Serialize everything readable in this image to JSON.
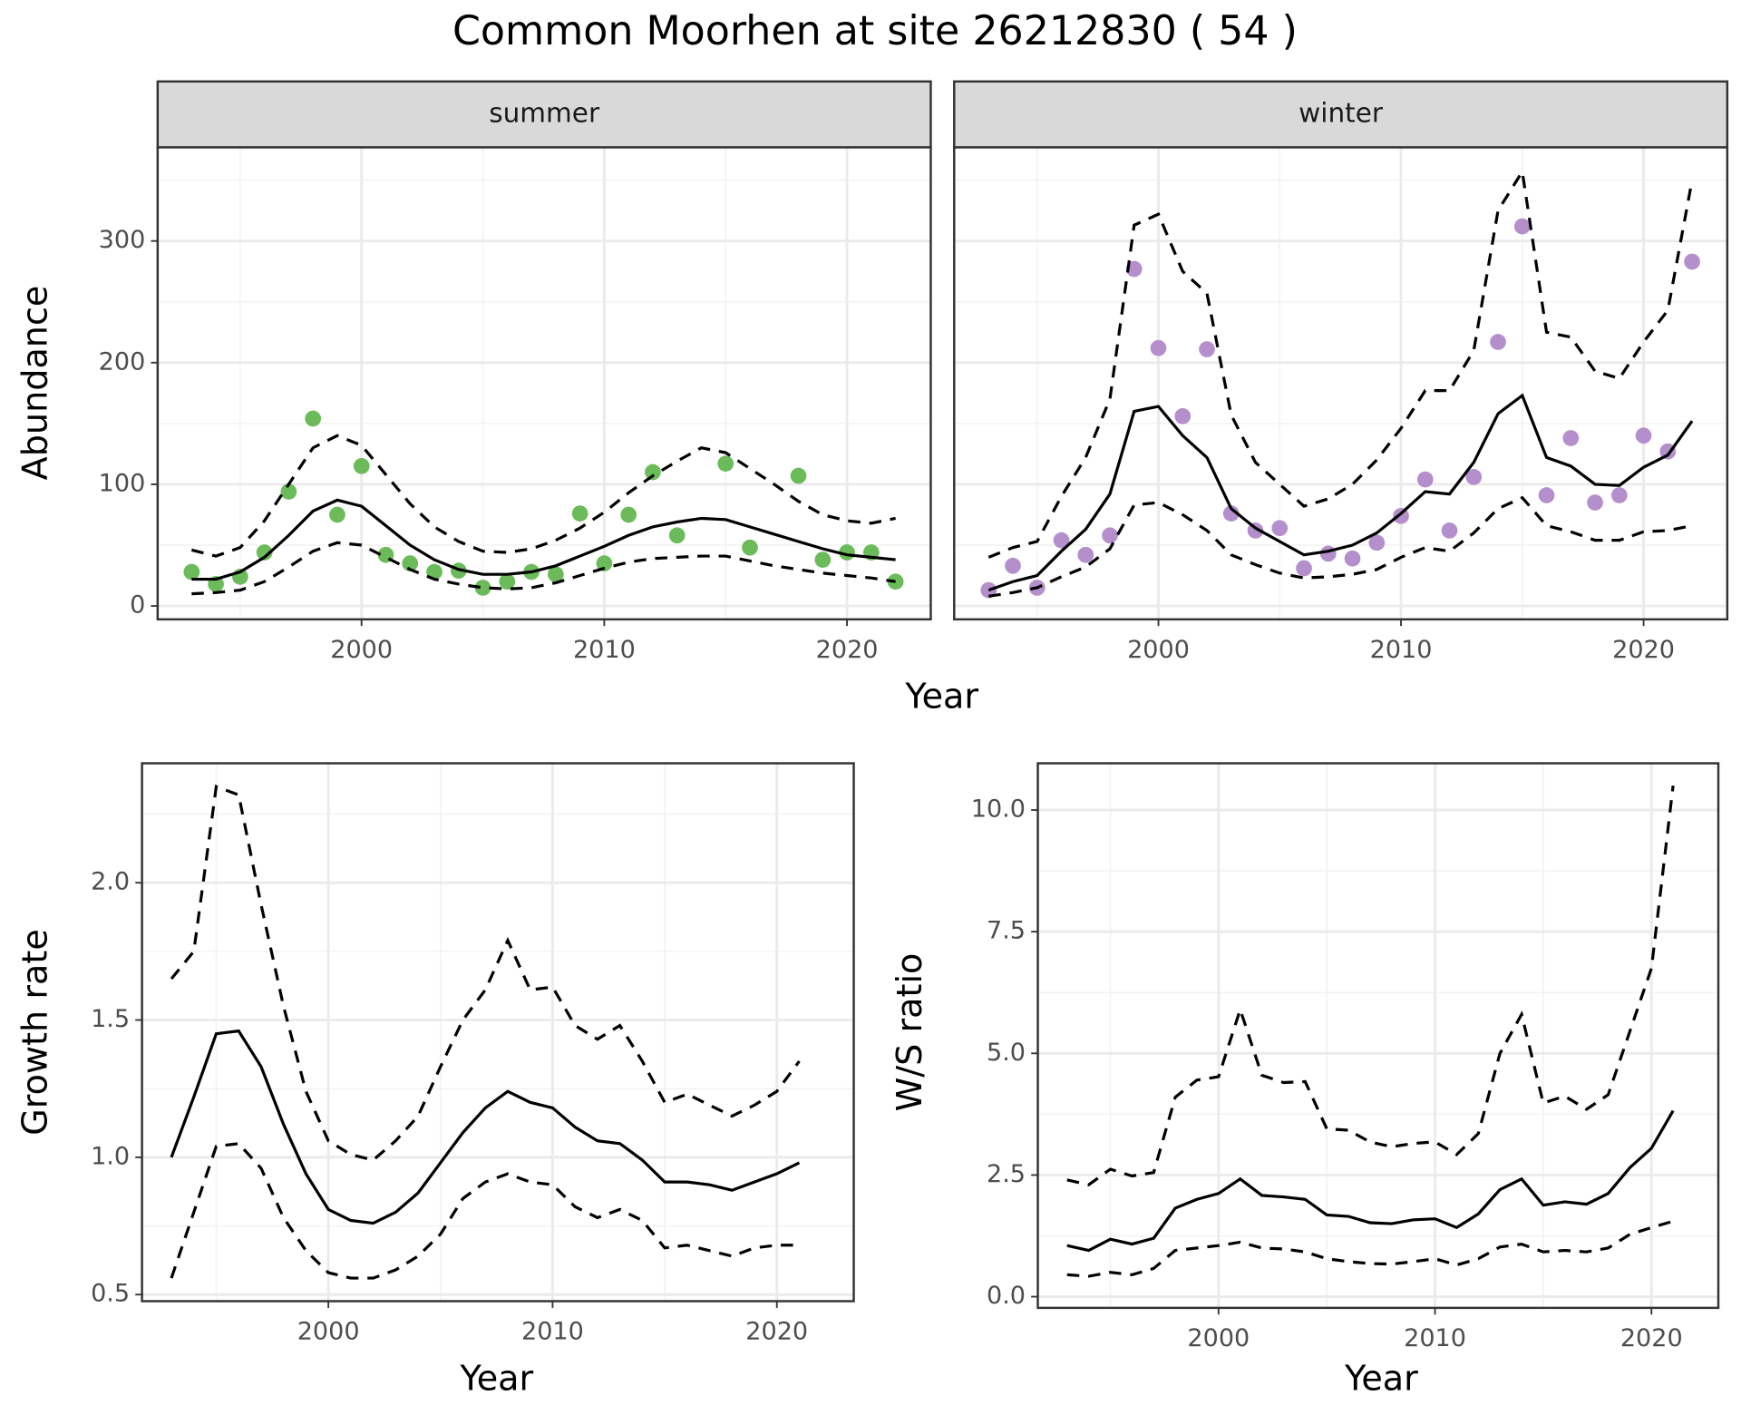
{
  "title": "Common Moorhen at site 26212830 ( 54 )",
  "chart_data": [
    {
      "type": "scatter-fit",
      "strip": "summer",
      "ylabel": "Abundance",
      "xlabel": "Year",
      "x": [
        1993,
        1994,
        1995,
        1996,
        1997,
        1998,
        1999,
        2000,
        2001,
        2002,
        2003,
        2004,
        2005,
        2006,
        2007,
        2008,
        2009,
        2010,
        2011,
        2012,
        2013,
        2014,
        2015,
        2016,
        2017,
        2018,
        2019,
        2020,
        2021,
        2022
      ],
      "xlim": [
        1991.6,
        2023.45
      ],
      "xticks": [
        2000,
        2010,
        2020
      ],
      "xminor": [
        1995,
        2005,
        2015
      ],
      "ylim": [
        -11,
        377
      ],
      "yticks": [
        0,
        100,
        200,
        300
      ],
      "yminor": [
        50,
        150,
        250,
        350
      ],
      "ytick_labels": true,
      "grid": true,
      "series": [
        {
          "role": "points",
          "color": "#6cbb5a",
          "values": [
            28,
            18,
            24,
            44,
            94,
            154,
            75,
            115,
            42,
            35,
            28,
            29,
            15,
            20,
            28,
            26,
            76,
            35,
            75,
            110,
            58,
            null,
            117,
            48,
            null,
            107,
            38,
            44,
            44,
            20
          ]
        },
        {
          "role": "fit",
          "line": "solid",
          "color": "#000000",
          "values": [
            22,
            22,
            28,
            40,
            58,
            78,
            87,
            82,
            66,
            50,
            38,
            30,
            26,
            26,
            28,
            33,
            41,
            49,
            58,
            65,
            69,
            72,
            71,
            65,
            59,
            53,
            47,
            42,
            40,
            38
          ]
        },
        {
          "role": "upper",
          "line": "dashed",
          "color": "#000000",
          "values": [
            46,
            41,
            48,
            70,
            100,
            130,
            140,
            132,
            108,
            84,
            65,
            53,
            45,
            44,
            47,
            54,
            64,
            77,
            93,
            107,
            119,
            130,
            126,
            113,
            100,
            86,
            75,
            70,
            68,
            72
          ]
        },
        {
          "role": "lower",
          "line": "dashed",
          "color": "#000000",
          "values": [
            10,
            11,
            13,
            20,
            32,
            45,
            52,
            50,
            40,
            30,
            22,
            18,
            15,
            14,
            15,
            19,
            25,
            31,
            36,
            39,
            40,
            41,
            41,
            37,
            33,
            30,
            27,
            25,
            23,
            20
          ]
        }
      ]
    },
    {
      "type": "scatter-fit",
      "strip": "winter",
      "x": [
        1993,
        1994,
        1995,
        1996,
        1997,
        1998,
        1999,
        2000,
        2001,
        2002,
        2003,
        2004,
        2005,
        2006,
        2007,
        2008,
        2009,
        2010,
        2011,
        2012,
        2013,
        2014,
        2015,
        2016,
        2017,
        2018,
        2019,
        2020,
        2021,
        2022
      ],
      "xlim": [
        1991.58,
        2023.45
      ],
      "xticks": [
        2000,
        2010,
        2020
      ],
      "xminor": [
        1995,
        2005,
        2015
      ],
      "ylim": [
        -11,
        377
      ],
      "yticks": [
        0,
        100,
        200,
        300
      ],
      "yminor": [
        50,
        150,
        250,
        350
      ],
      "ytick_labels": false,
      "grid": true,
      "series": [
        {
          "role": "points",
          "color": "#b48fcc",
          "values": [
            13,
            33,
            15,
            54,
            42,
            58,
            277,
            212,
            156,
            211,
            76,
            62,
            64,
            31,
            43,
            39,
            52,
            74,
            104,
            62,
            106,
            217,
            312,
            91,
            138,
            85,
            91,
            140,
            127,
            283
          ]
        },
        {
          "role": "fit",
          "line": "solid",
          "color": "#000000",
          "values": [
            13,
            20,
            25,
            45,
            63,
            92,
            160,
            164,
            140,
            122,
            80,
            64,
            53,
            42,
            45,
            50,
            60,
            76,
            94,
            92,
            118,
            158,
            173,
            122,
            115,
            100,
            99,
            114,
            124,
            152
          ]
        },
        {
          "role": "upper",
          "line": "dashed",
          "color": "#000000",
          "values": [
            40,
            48,
            53,
            90,
            122,
            170,
            313,
            322,
            275,
            257,
            157,
            118,
            100,
            82,
            88,
            100,
            120,
            146,
            177,
            177,
            210,
            325,
            357,
            225,
            221,
            193,
            187,
            217,
            243,
            350
          ]
        },
        {
          "role": "lower",
          "line": "dashed",
          "color": "#000000",
          "values": [
            8,
            11,
            15,
            24,
            32,
            47,
            83,
            85,
            75,
            62,
            42,
            34,
            27,
            23,
            24,
            26,
            30,
            40,
            48,
            45,
            60,
            80,
            89,
            66,
            61,
            54,
            54,
            61,
            62,
            66
          ]
        }
      ]
    },
    {
      "type": "line",
      "ylabel": "Growth rate",
      "xlabel": "Year",
      "x": [
        1993,
        1994,
        1995,
        1996,
        1997,
        1998,
        1999,
        2000,
        2001,
        2002,
        2003,
        2004,
        2005,
        2006,
        2007,
        2008,
        2009,
        2010,
        2011,
        2012,
        2013,
        2014,
        2015,
        2016,
        2017,
        2018,
        2019,
        2020,
        2021
      ],
      "xlim": [
        1991.69,
        2023.43
      ],
      "xticks": [
        2000,
        2010,
        2020
      ],
      "xminor": [
        1995,
        2005,
        2015
      ],
      "ylim": [
        0.476,
        2.435
      ],
      "yticks": [
        0.5,
        {
          "value": 1,
          "label": "1.0"
        },
        1.5,
        {
          "value": 2,
          "label": "2.0"
        }
      ],
      "yminor": [
        0.75,
        1.25,
        1.75,
        2.25
      ],
      "ytick_labels": true,
      "grid": true,
      "series": [
        {
          "role": "fit",
          "line": "solid",
          "color": "#000000",
          "values": [
            1.0,
            1.22,
            1.45,
            1.46,
            1.33,
            1.12,
            0.94,
            0.81,
            0.77,
            0.76,
            0.8,
            0.87,
            0.98,
            1.09,
            1.18,
            1.24,
            1.2,
            1.18,
            1.11,
            1.06,
            1.05,
            0.99,
            0.91,
            0.91,
            0.9,
            0.88,
            0.91,
            0.94,
            0.98
          ]
        },
        {
          "role": "upper",
          "line": "dashed",
          "color": "#000000",
          "values": [
            1.65,
            1.75,
            2.35,
            2.32,
            1.92,
            1.55,
            1.24,
            1.06,
            1.01,
            0.99,
            1.06,
            1.15,
            1.33,
            1.5,
            1.61,
            1.79,
            1.61,
            1.62,
            1.48,
            1.43,
            1.48,
            1.35,
            1.2,
            1.23,
            1.19,
            1.15,
            1.19,
            1.24,
            1.35
          ]
        },
        {
          "role": "lower",
          "line": "dashed",
          "color": "#000000",
          "values": [
            0.56,
            0.8,
            1.04,
            1.05,
            0.96,
            0.78,
            0.66,
            0.58,
            0.56,
            0.56,
            0.59,
            0.64,
            0.72,
            0.85,
            0.91,
            0.94,
            0.91,
            0.9,
            0.82,
            0.78,
            0.81,
            0.77,
            0.67,
            0.68,
            0.66,
            0.64,
            0.67,
            0.68,
            0.68
          ]
        }
      ]
    },
    {
      "type": "line",
      "ylabel": "W/S ratio",
      "xlabel": "Year",
      "x": [
        1993,
        1994,
        1995,
        1996,
        1997,
        1998,
        1999,
        2000,
        2001,
        2002,
        2003,
        2004,
        2005,
        2006,
        2007,
        2008,
        2009,
        2010,
        2011,
        2012,
        2013,
        2014,
        2015,
        2016,
        2017,
        2018,
        2019,
        2020,
        2021
      ],
      "xlim": [
        1991.65,
        2023.09
      ],
      "xticks": [
        2000,
        2010,
        2020
      ],
      "xminor": [
        1995,
        2005,
        2015
      ],
      "ylim": [
        -0.23,
        10.96
      ],
      "yticks": [
        {
          "value": 0,
          "label": "0.0"
        },
        2.5,
        {
          "value": 5,
          "label": "5.0"
        },
        7.5,
        {
          "value": 10,
          "label": "10.0"
        }
      ],
      "yminor": [
        1.25,
        3.75,
        6.25,
        8.75
      ],
      "ytick_labels": true,
      "grid": true,
      "series": [
        {
          "role": "fit",
          "line": "solid",
          "color": "#000000",
          "values": [
            1.05,
            0.95,
            1.18,
            1.08,
            1.2,
            1.82,
            2.0,
            2.12,
            2.42,
            2.08,
            2.05,
            2.0,
            1.68,
            1.65,
            1.52,
            1.5,
            1.58,
            1.6,
            1.42,
            1.7,
            2.2,
            2.42,
            1.88,
            1.95,
            1.9,
            2.12,
            2.65,
            3.05,
            3.82
          ]
        },
        {
          "role": "upper",
          "line": "dashed",
          "color": "#000000",
          "values": [
            2.4,
            2.3,
            2.62,
            2.48,
            2.55,
            4.1,
            4.45,
            4.52,
            5.9,
            4.55,
            4.4,
            4.42,
            3.45,
            3.42,
            3.18,
            3.08,
            3.15,
            3.18,
            2.92,
            3.35,
            5.0,
            5.8,
            3.98,
            4.12,
            3.85,
            4.15,
            5.45,
            6.75,
            10.5
          ]
        },
        {
          "role": "lower",
          "line": "dashed",
          "color": "#000000",
          "values": [
            0.45,
            0.42,
            0.5,
            0.45,
            0.58,
            0.95,
            1.0,
            1.05,
            1.12,
            1.0,
            0.98,
            0.92,
            0.78,
            0.72,
            0.68,
            0.67,
            0.72,
            0.78,
            0.65,
            0.78,
            1.02,
            1.08,
            0.92,
            0.95,
            0.92,
            1.0,
            1.28,
            1.42,
            1.55
          ]
        }
      ]
    }
  ]
}
